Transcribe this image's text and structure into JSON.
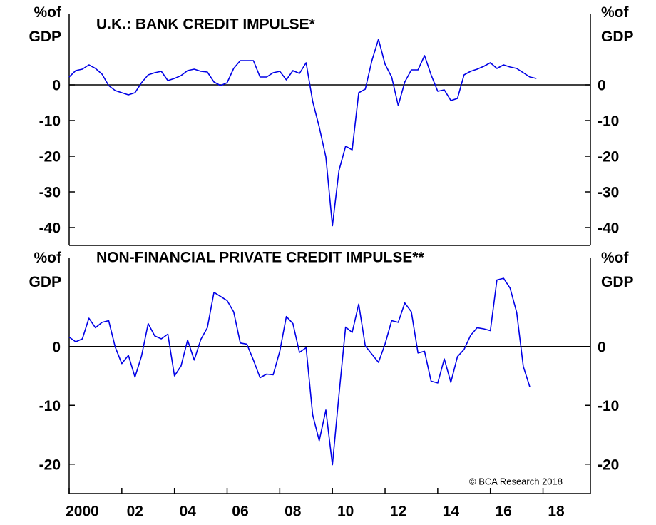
{
  "chart_data": [
    {
      "type": "line",
      "title": "U.K.: BANK CREDIT IMPULSE*",
      "ylabel": "%of GDP",
      "y2label": "%of GDP",
      "xlim": [
        2000,
        2019.8
      ],
      "ylim": [
        -45,
        20
      ],
      "yticks": [
        0,
        -10,
        -20,
        -30,
        -40
      ],
      "y2lim": [
        -45,
        20
      ],
      "y2ticks": [
        0,
        -10,
        -20,
        -30,
        -40
      ],
      "x": [
        2000,
        2000.25,
        2000.5,
        2000.75,
        2001,
        2001.25,
        2001.5,
        2001.75,
        2002,
        2002.25,
        2002.5,
        2002.75,
        2003,
        2003.25,
        2003.5,
        2003.75,
        2004,
        2004.25,
        2004.5,
        2004.75,
        2005,
        2005.25,
        2005.5,
        2005.75,
        2006,
        2006.25,
        2006.5,
        2006.75,
        2007,
        2007.25,
        2007.5,
        2007.75,
        2008,
        2008.25,
        2008.5,
        2008.75,
        2009,
        2009.25,
        2009.5,
        2009.75,
        2010,
        2010.25,
        2010.5,
        2010.75,
        2011,
        2011.25,
        2011.5,
        2011.75,
        2012,
        2012.25,
        2012.5,
        2012.75,
        2013,
        2013.25,
        2013.5,
        2013.75,
        2014,
        2014.25,
        2014.5,
        2014.75,
        2015,
        2015.25,
        2015.5,
        2015.75,
        2016,
        2016.25,
        2016.5,
        2016.75,
        2017,
        2017.25,
        2017.5,
        2017.75
      ],
      "series": [
        {
          "name": "U.K.: BANK CREDIT IMPULSE*",
          "color": "#0000e6",
          "values": [
            2.2,
            4.0,
            4.4,
            5.6,
            4.6,
            3.0,
            -0.2,
            -1.6,
            -2.2,
            -2.8,
            -2.2,
            0.6,
            2.8,
            3.4,
            3.8,
            1.2,
            1.8,
            2.6,
            4.0,
            4.4,
            3.8,
            3.6,
            0.8,
            -0.2,
            0.6,
            4.6,
            6.8,
            6.8,
            6.8,
            2.2,
            2.2,
            3.4,
            3.8,
            1.4,
            4.0,
            3.2,
            6.2,
            -4.6,
            -11.8,
            -20.2,
            -39.5,
            -24,
            -17.2,
            -18.2,
            -2.2,
            -1.2,
            6.8,
            12.8,
            5.8,
            2.2,
            -5.8,
            0.8,
            4.2,
            4.2,
            8.2,
            2.8,
            -1.8,
            -1.4,
            -4.4,
            -3.8,
            2.8,
            3.8,
            4.4,
            5.2,
            6.2,
            4.6,
            5.6,
            5.0,
            4.6,
            3.4,
            2.2,
            1.8
          ]
        }
      ]
    },
    {
      "type": "line",
      "title": "NON-FINANCIAL PRIVATE CREDIT IMPULSE**",
      "ylabel": "%of GDP",
      "y2label": "%of GDP",
      "annotation": "© BCA Research 2018",
      "xlim": [
        2000,
        2019.8
      ],
      "xticks": [
        {
          "value": 2000,
          "label": "2000"
        },
        {
          "value": 2002,
          "label": "02"
        },
        {
          "value": 2004,
          "label": "04"
        },
        {
          "value": 2006,
          "label": "06"
        },
        {
          "value": 2008,
          "label": "08"
        },
        {
          "value": 2010,
          "label": "10"
        },
        {
          "value": 2012,
          "label": "12"
        },
        {
          "value": 2014,
          "label": "14"
        },
        {
          "value": 2016,
          "label": "16"
        },
        {
          "value": 2018,
          "label": "18"
        }
      ],
      "ylim": [
        -25,
        15
      ],
      "yticks": [
        0,
        -10,
        -20
      ],
      "y2lim": [
        -25,
        15
      ],
      "y2ticks": [
        0,
        -10,
        -20
      ],
      "x": [
        2000,
        2000.25,
        2000.5,
        2000.75,
        2001,
        2001.25,
        2001.5,
        2001.75,
        2002,
        2002.25,
        2002.5,
        2002.75,
        2003,
        2003.25,
        2003.5,
        2003.75,
        2004,
        2004.25,
        2004.5,
        2004.75,
        2005,
        2005.25,
        2005.5,
        2005.75,
        2006,
        2006.25,
        2006.5,
        2006.75,
        2007,
        2007.25,
        2007.5,
        2007.75,
        2008,
        2008.25,
        2008.5,
        2008.75,
        2009,
        2009.25,
        2009.5,
        2009.75,
        2010,
        2010.25,
        2010.5,
        2010.75,
        2011,
        2011.25,
        2011.5,
        2011.75,
        2012,
        2012.25,
        2012.5,
        2012.75,
        2013,
        2013.25,
        2013.5,
        2013.75,
        2014,
        2014.25,
        2014.5,
        2014.75,
        2015,
        2015.25,
        2015.5,
        2015.75,
        2016,
        2016.25,
        2016.5,
        2016.75,
        2017,
        2017.25,
        2017.5
      ],
      "series": [
        {
          "name": "NON-FINANCIAL PRIVATE CREDIT IMPULSE**",
          "color": "#0000e6",
          "values": [
            1.6,
            0.8,
            1.3,
            4.8,
            3.2,
            4.1,
            4.4,
            -0.1,
            -2.9,
            -1.5,
            -5.2,
            -1.6,
            3.9,
            1.8,
            1.3,
            2.1,
            -5.0,
            -3.3,
            1.1,
            -2.3,
            1.2,
            3.2,
            9.2,
            8.5,
            7.8,
            5.9,
            0.6,
            0.4,
            -2.3,
            -5.3,
            -4.7,
            -4.8,
            -0.8,
            5.1,
            3.9,
            -1.0,
            -0.2,
            -11.6,
            -16.0,
            -10.8,
            -20.1,
            -8.2,
            3.3,
            2.4,
            7.2,
            0.1,
            -1.3,
            -2.7,
            0.4,
            4.4,
            4.1,
            7.4,
            5.9,
            -1.1,
            -0.8,
            -5.9,
            -6.2,
            -2.1,
            -6.1,
            -1.7,
            -0.5,
            1.9,
            3.2,
            3.0,
            2.7,
            11.3,
            11.6,
            9.9,
            5.8,
            -3.4,
            -6.9
          ]
        }
      ]
    }
  ]
}
